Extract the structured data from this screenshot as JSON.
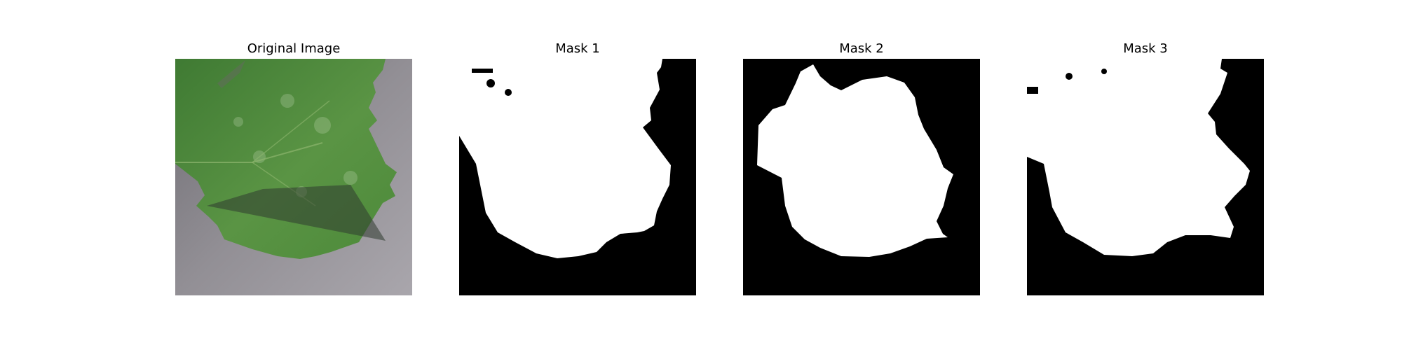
{
  "panels": [
    {
      "title": "Original Image",
      "content": "leaf-photo"
    },
    {
      "title": "Mask 1",
      "content": "binary-mask"
    },
    {
      "title": "Mask 2",
      "content": "binary-mask"
    },
    {
      "title": "Mask 3",
      "content": "binary-mask"
    }
  ],
  "colors": {
    "background": "#ffffff",
    "mask_foreground": "#ffffff",
    "mask_background": "#000000",
    "leaf_green": "#4f8a3c",
    "surface_gray": "#8f8c92"
  }
}
